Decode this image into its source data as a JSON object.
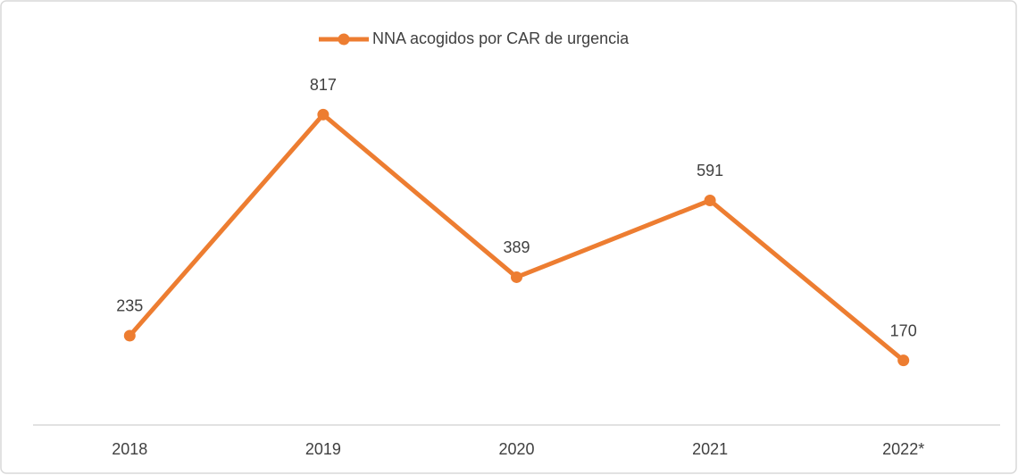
{
  "chart_data": {
    "type": "line",
    "categories": [
      "2018",
      "2019",
      "2020",
      "2021",
      "2022*"
    ],
    "series": [
      {
        "name": "NNA acogidos por CAR de urgencia",
        "color": "#ed7d31",
        "values": [
          235,
          817,
          389,
          591,
          170
        ]
      }
    ],
    "ylim": [
      0,
      900
    ],
    "legend": "top"
  }
}
